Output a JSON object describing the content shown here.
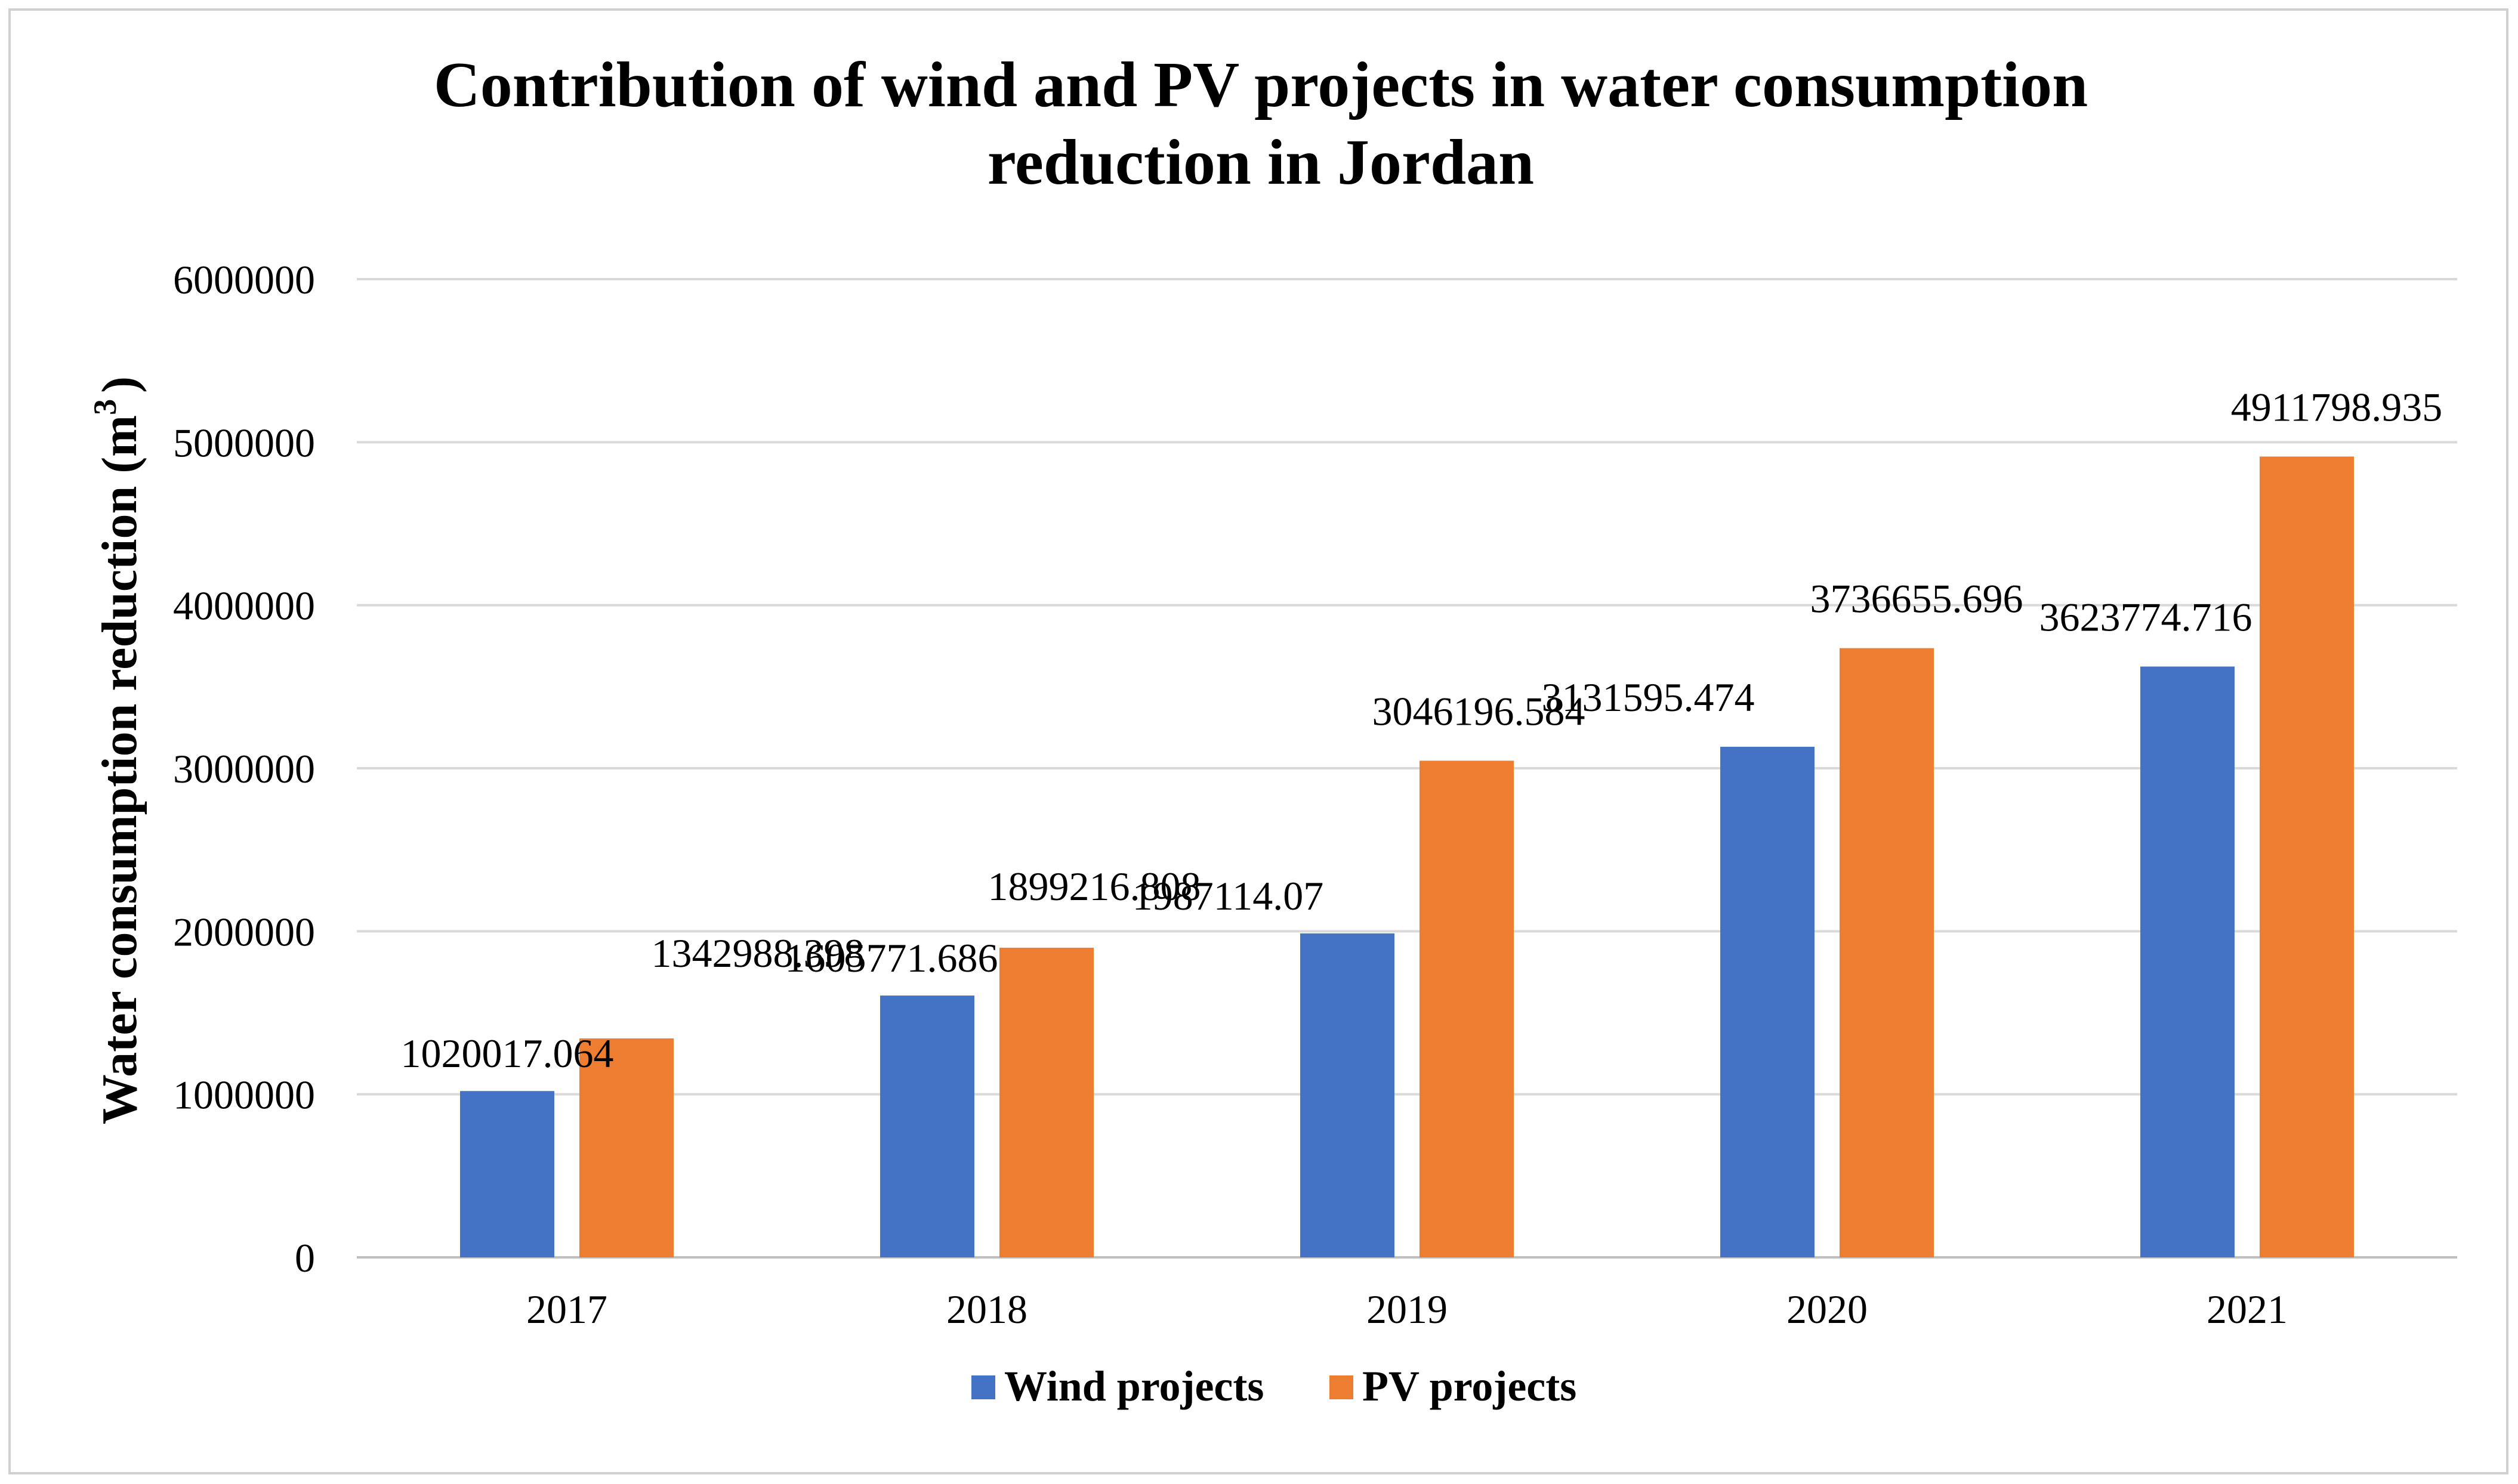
{
  "chart_data": {
    "type": "bar",
    "title_lines": [
      "Contribution of wind and PV projects in water consumption",
      "reduction in Jordan"
    ],
    "ylabel": "Water consumption reduction (m",
    "ylabel_sup": "3",
    "ylabel_end": ")",
    "xlabel": "",
    "ylim": [
      0,
      6000000
    ],
    "yticks": [
      0,
      1000000,
      2000000,
      3000000,
      4000000,
      5000000,
      6000000
    ],
    "ytick_labels": [
      "0",
      "1000000",
      "2000000",
      "3000000",
      "4000000",
      "5000000",
      "6000000"
    ],
    "grid": true,
    "legend_position": "bottom-center",
    "categories": [
      "2017",
      "2018",
      "2019",
      "2020",
      "2021"
    ],
    "series": [
      {
        "name": "Wind projects",
        "color": "#4472C4",
        "values": [
          1020017.064,
          1605771.686,
          1987114.07,
          3131595.474,
          3623774.716
        ],
        "labels": [
          "1020017.064",
          "1605771.686",
          "1987114.07",
          "3131595.474",
          "3623774.716"
        ]
      },
      {
        "name": "PV projects",
        "color": "#ED7D31",
        "values": [
          1342988.398,
          1899216.808,
          3046196.584,
          3736655.696,
          4911798.935
        ],
        "labels": [
          "1342988.398",
          "1899216.808",
          "3046196.584",
          "3736655.696",
          "4911798.935"
        ]
      }
    ]
  }
}
